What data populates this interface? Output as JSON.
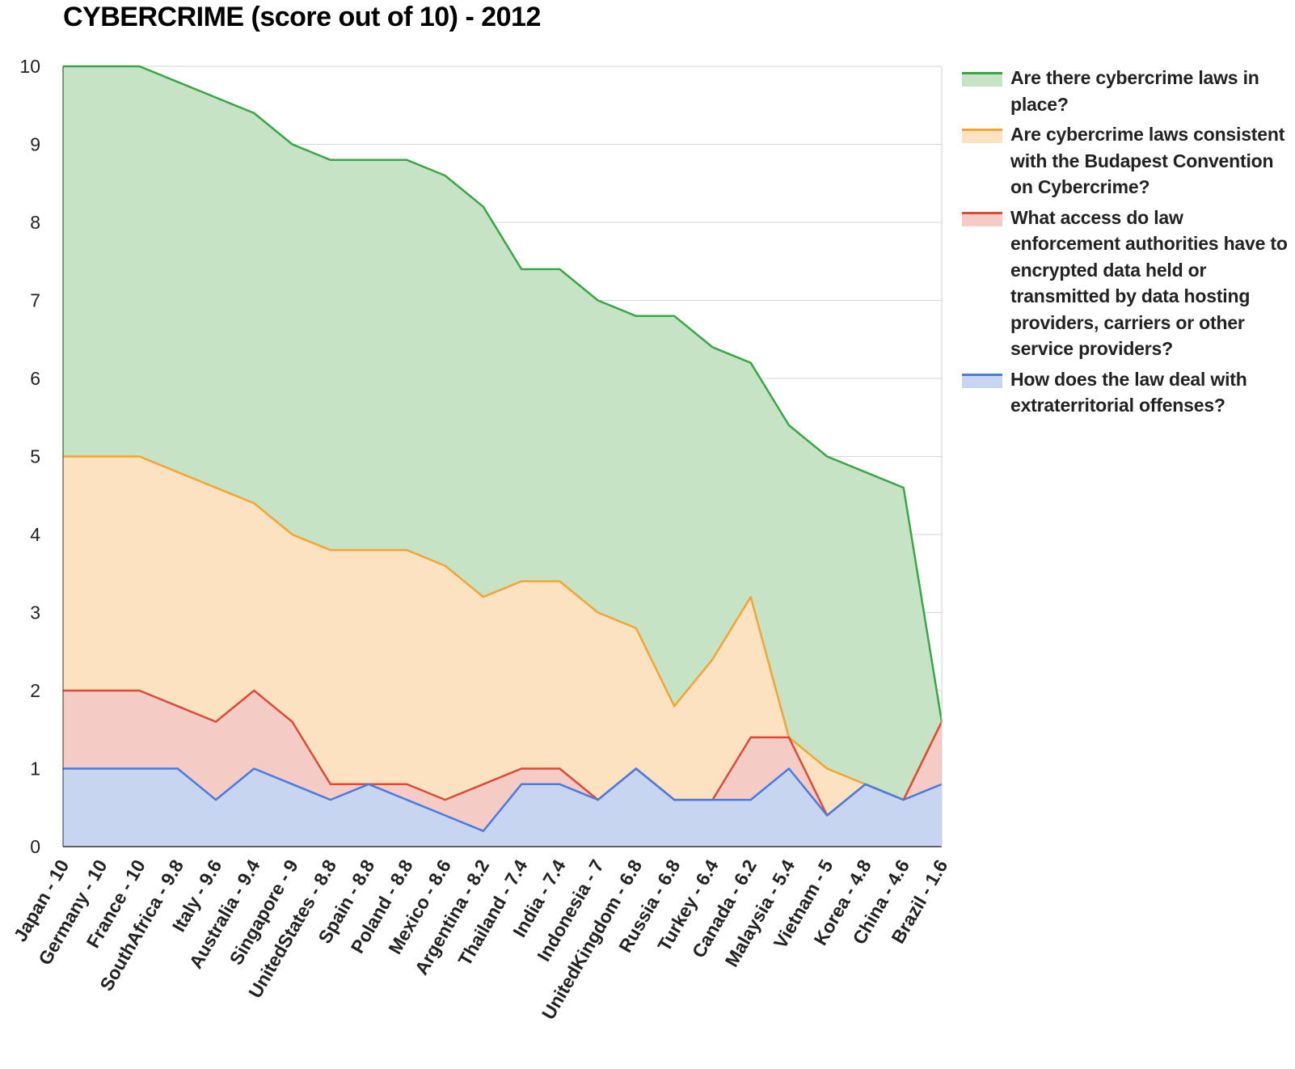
{
  "title": "CYBERCRIME (score out of 10) - 2012",
  "chart_data": {
    "type": "area",
    "stacked": true,
    "title": "CYBERCRIME (score out of 10) - 2012",
    "xlabel": "",
    "ylabel": "",
    "ylim": [
      0,
      10
    ],
    "yticks": [
      0,
      1,
      2,
      3,
      4,
      5,
      6,
      7,
      8,
      9,
      10
    ],
    "grid": true,
    "legend_position": "right",
    "categories": [
      "Japan - 10",
      "Germany - 10",
      "France - 10",
      "SouthAfrica - 9.8",
      "Italy - 9.6",
      "Australia - 9.4",
      "Singapore - 9",
      "UnitedStates - 8.8",
      "Spain - 8.8",
      "Poland - 8.8",
      "Mexico - 8.6",
      "Argentina - 8.2",
      "Thailand - 7.4",
      "India - 7.4",
      "Indonesia - 7",
      "UnitedKingdom - 6.8",
      "Russia - 6.8",
      "Turkey - 6.4",
      "Canada - 6.2",
      "Malaysia - 5.4",
      "Vietnam - 5",
      "Korea - 4.8",
      "China - 4.6",
      "Brazil - 1.6"
    ],
    "series": [
      {
        "name": "How does the law deal with extraterritorial offenses?",
        "line_color": "#4a7be0",
        "fill_color": "#c8d5f0",
        "values": [
          1,
          1,
          1,
          1,
          0.6,
          1,
          0.8,
          0.6,
          0.8,
          0.6,
          0.4,
          0.2,
          0.8,
          0.8,
          0.6,
          1,
          0.6,
          0.6,
          0.6,
          1,
          0.4,
          0.8,
          0.6,
          0.8
        ]
      },
      {
        "name": "What access do law enforcement authorities have to encrypted data held or transmitted by data hosting providers, carriers or other service providers?",
        "line_color": "#dc4a38",
        "fill_color": "#f5cbc6",
        "values": [
          1,
          1,
          1,
          0.8,
          1,
          1,
          0.8,
          0.2,
          0,
          0.2,
          0.2,
          0.6,
          0.2,
          0.2,
          0,
          0,
          0,
          0,
          0.8,
          0.4,
          0,
          0,
          0,
          0.8
        ]
      },
      {
        "name": "Are cybercrime laws consistent with the Budapest Convention on Cybercrime?",
        "line_color": "#f4a433",
        "fill_color": "#fde2c2",
        "values": [
          3,
          3,
          3,
          3,
          3,
          2.4,
          2.4,
          3,
          3,
          3,
          3,
          2.4,
          2.4,
          2.4,
          2.4,
          1.8,
          1.2,
          1.8,
          1.8,
          0,
          0.6,
          0,
          0,
          0
        ]
      },
      {
        "name": "Are there cybercrime laws in place?",
        "line_color": "#3aa547",
        "fill_color": "#c6e4c5",
        "values": [
          5,
          5,
          5,
          5,
          5,
          5,
          5,
          5,
          5,
          5,
          5,
          5,
          4,
          4,
          4,
          4,
          5,
          4,
          3,
          4,
          4,
          4,
          4,
          0
        ]
      }
    ]
  },
  "legend": [
    {
      "label": "Are there cybercrime laws in place?",
      "line_color": "#3aa547",
      "fill_color": "#c6e4c5"
    },
    {
      "label": "Are cybercrime laws consistent with the Budapest Convention on Cybercrime?",
      "line_color": "#f4a433",
      "fill_color": "#fde2c2"
    },
    {
      "label": "What access do law enforcement authorities have to encrypted data held or transmitted by data hosting providers, carriers or other service providers?",
      "line_color": "#dc4a38",
      "fill_color": "#f5cbc6"
    },
    {
      "label": "How does the law deal with extraterritorial offenses?",
      "line_color": "#4a7be0",
      "fill_color": "#c8d5f0"
    }
  ]
}
